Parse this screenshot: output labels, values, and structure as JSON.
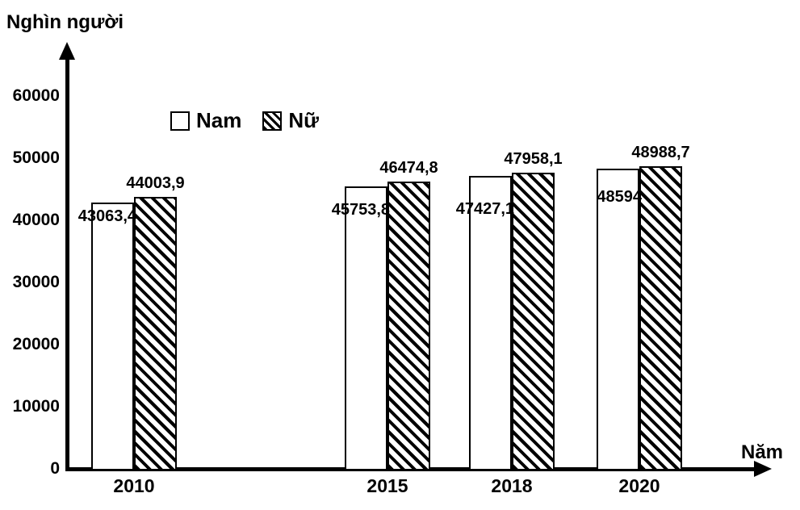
{
  "chart_data": {
    "type": "bar",
    "title": "",
    "y_axis_label": "Nghìn người",
    "x_axis_label": "Năm",
    "categories": [
      "2010",
      "2015",
      "2018",
      "2020"
    ],
    "series": [
      {
        "name": "Nam",
        "style": "plain-white",
        "values": [
          43063.4,
          45753.8,
          47427.1,
          48594
        ],
        "labels": [
          "43063,4",
          "45753,8",
          "47427,1",
          "48594"
        ]
      },
      {
        "name": "Nữ",
        "style": "diagonal-hatch",
        "values": [
          44003.9,
          46474.8,
          47958.1,
          48988.7
        ],
        "labels": [
          "44003,9",
          "46474,8",
          "47958,1",
          "48988,7"
        ]
      }
    ],
    "y_ticks": [
      "0",
      "10000",
      "20000",
      "30000",
      "40000",
      "50000",
      "60000"
    ],
    "ylim": [
      0,
      60000
    ],
    "y_tick_interval": 10000,
    "legend": [
      "Nam",
      "Nữ"
    ],
    "legend_position": "top-center",
    "grid": false,
    "colors": {
      "foreground": "#000000",
      "background": "#ffffff",
      "bar_fill": "#ffffff",
      "bar_border": "#000000",
      "hatch": "#000000"
    }
  }
}
